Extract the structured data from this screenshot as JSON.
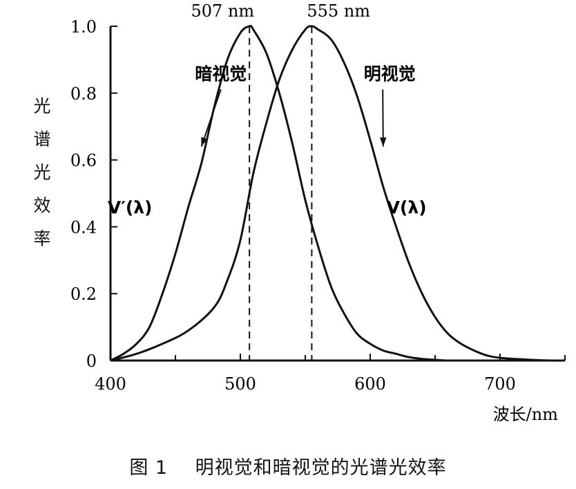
{
  "caption": {
    "figure_number": "图 1",
    "text": "明视觉和暗视觉的光谱光效率"
  },
  "chart_data": {
    "type": "line",
    "title": "",
    "xlabel": "波长/nm",
    "ylabel": "光谱光效率",
    "xlim": [
      400,
      750
    ],
    "ylim": [
      0,
      1.0
    ],
    "xticks": [
      400,
      500,
      600,
      700
    ],
    "xtick_labels": [
      "400",
      "500",
      "600",
      "700"
    ],
    "yticks": [
      0,
      0.2,
      0.4,
      0.6,
      0.8,
      1.0
    ],
    "ytick_labels": [
      "0",
      "0.2",
      "0.4",
      "0.6",
      "0.8",
      "1.0"
    ],
    "grid": false,
    "series": [
      {
        "name": "V′(λ)",
        "annotation": "暗视觉",
        "peak_label": "507 nm",
        "color": "#111111",
        "x": [
          400,
          410,
          420,
          430,
          440,
          450,
          460,
          470,
          480,
          490,
          500,
          507,
          510,
          520,
          530,
          540,
          550,
          560,
          570,
          580,
          590,
          600,
          610,
          620,
          630,
          640,
          650,
          660
        ],
        "y": [
          0.0,
          0.02,
          0.05,
          0.1,
          0.2,
          0.32,
          0.46,
          0.59,
          0.76,
          0.9,
          0.98,
          1.0,
          0.99,
          0.92,
          0.8,
          0.65,
          0.48,
          0.34,
          0.22,
          0.14,
          0.08,
          0.05,
          0.03,
          0.02,
          0.01,
          0.005,
          0.002,
          0.0
        ]
      },
      {
        "name": "V(λ)",
        "annotation": "明视觉",
        "peak_label": "555 nm",
        "color": "#111111",
        "x": [
          400,
          420,
          440,
          460,
          480,
          490,
          500,
          510,
          520,
          530,
          540,
          550,
          555,
          560,
          570,
          580,
          590,
          600,
          610,
          620,
          630,
          640,
          650,
          660,
          670,
          680,
          690,
          700,
          720,
          740,
          750
        ],
        "y": [
          0.0,
          0.02,
          0.05,
          0.09,
          0.16,
          0.24,
          0.36,
          0.56,
          0.71,
          0.84,
          0.93,
          0.99,
          1.0,
          0.99,
          0.96,
          0.89,
          0.79,
          0.66,
          0.52,
          0.4,
          0.29,
          0.2,
          0.13,
          0.08,
          0.05,
          0.03,
          0.015,
          0.008,
          0.003,
          0.0,
          0.0
        ]
      }
    ],
    "annotations": [
      {
        "text": "暗视觉",
        "x": 485,
        "y": 0.84,
        "arrow_to": [
          470,
          0.64
        ]
      },
      {
        "text": "明视觉",
        "x": 615,
        "y": 0.84,
        "arrow_to": [
          610,
          0.64
        ]
      },
      {
        "text": "V′(λ)",
        "x": 415,
        "y": 0.44
      },
      {
        "text": "V(λ)",
        "x": 628,
        "y": 0.44
      }
    ]
  }
}
